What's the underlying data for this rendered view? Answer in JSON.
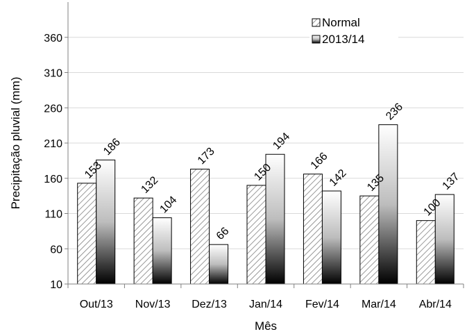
{
  "chart_data": {
    "type": "bar",
    "categories": [
      "Out/13",
      "Nov/13",
      "Dez/13",
      "Jan/14",
      "Fev/14",
      "Mar/14",
      "Abr/14"
    ],
    "series": [
      {
        "name": "Normal",
        "values": [
          153,
          132,
          173,
          150,
          166,
          135,
          100
        ],
        "fill": "hatch"
      },
      {
        "name": "2013/14",
        "values": [
          186,
          104,
          66,
          194,
          142,
          236,
          137
        ],
        "fill": "gradient"
      }
    ],
    "xlabel": "Mês",
    "ylabel": "Precipitação pluvial (mm)",
    "ylim": [
      10,
      410
    ],
    "yticks": [
      10,
      60,
      110,
      160,
      210,
      260,
      310,
      360
    ],
    "grid": true,
    "legend_position": "top-right",
    "colors": {
      "axis": "#808080",
      "grid": "#d9d9d9",
      "bar_outline": "#000000",
      "hatch": "#808080"
    }
  }
}
